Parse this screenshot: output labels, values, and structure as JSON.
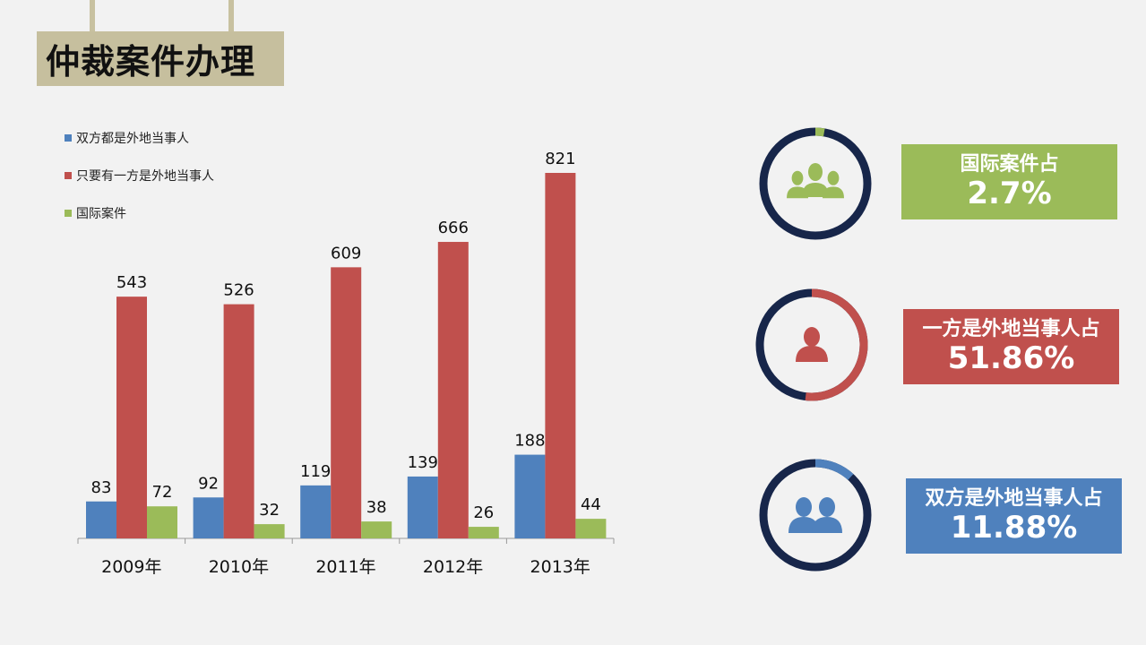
{
  "page_title": "仲裁案件办理",
  "chart_data": {
    "type": "bar",
    "categories": [
      "2009年",
      "2010年",
      "2011年",
      "2012年",
      "2013年"
    ],
    "series": [
      {
        "name": "双方都是外地当事人",
        "color": "#4f81bd",
        "values": [
          83,
          92,
          119,
          139,
          188
        ]
      },
      {
        "name": "只要有一方是外地当事人",
        "color": "#c0504d",
        "values": [
          543,
          526,
          609,
          666,
          821
        ]
      },
      {
        "name": "国际案件",
        "color": "#9bbb59",
        "values": [
          72,
          32,
          38,
          26,
          44
        ]
      }
    ],
    "ylim": [
      0,
      900
    ],
    "legend": "top-left",
    "grid": false,
    "data_labels": true
  },
  "stats": [
    {
      "label": "国际案件占",
      "value": "2.7%",
      "fraction": 0.027,
      "color": "#9bbb59",
      "box_color": "#9bbb59",
      "icon": "group-people-icon"
    },
    {
      "label": "一方是外地当事人占",
      "value": "51.86%",
      "fraction": 0.5186,
      "color": "#c0504d",
      "box_color": "#c0504d",
      "icon": "person-icon"
    },
    {
      "label": "双方是外地当事人占",
      "value": "11.88%",
      "fraction": 0.1188,
      "color": "#4f81bd",
      "box_color": "#4f81bd",
      "icon": "two-people-icon"
    }
  ],
  "ring_color": "#17264a"
}
